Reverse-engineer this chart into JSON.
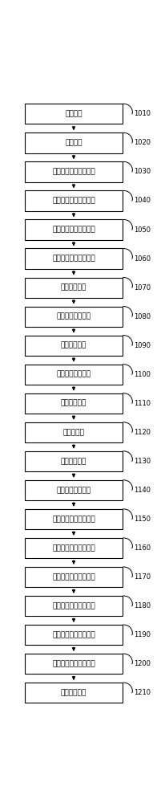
{
  "boxes": [
    {
      "label": "采样模块",
      "tag": "1010"
    },
    {
      "label": "初测模块",
      "tag": "1020"
    },
    {
      "label": "第一实数向量序列模块",
      "tag": "1030"
    },
    {
      "label": "第一实数向量滤波模块",
      "tag": "1040"
    },
    {
      "label": "第一虚数向量序列模块",
      "tag": "1050"
    },
    {
      "label": "第一虚数向量滤波模块",
      "tag": "1060"
    },
    {
      "label": "序列等分模块",
      "tag": "1070"
    },
    {
      "label": "前段序列积分模块",
      "tag": "1080"
    },
    {
      "label": "第一相位模块",
      "tag": "1090"
    },
    {
      "label": "后段序列积分模块",
      "tag": "1100"
    },
    {
      "label": "第二相位模块",
      "tag": "1110"
    },
    {
      "label": "相位差模块",
      "tag": "1120"
    },
    {
      "label": "基波频率模块",
      "tag": "1130"
    },
    {
      "label": "参考频率重置模块",
      "tag": "1140"
    },
    {
      "label": "第二实数向量序列模块",
      "tag": "1150"
    },
    {
      "label": "第二实数向量滤波模块",
      "tag": "1160"
    },
    {
      "label": "第二实数向量积分模块",
      "tag": "1170"
    },
    {
      "label": "第二虚数向量序列模块",
      "tag": "1180"
    },
    {
      "label": "第二虚数向量滤波模块",
      "tag": "1190"
    },
    {
      "label": "第二虚数向量积分模块",
      "tag": "1200"
    },
    {
      "label": "基波幅值模块",
      "tag": "1210"
    }
  ],
  "box_color": "#ffffff",
  "box_edge_color": "#000000",
  "line_color": "#000000",
  "tag_color": "#000000",
  "text_color": "#000000",
  "bg_color": "#ffffff",
  "fig_width": 2.06,
  "fig_height": 10.0,
  "font_size": 6.5,
  "tag_font_size": 6.0
}
